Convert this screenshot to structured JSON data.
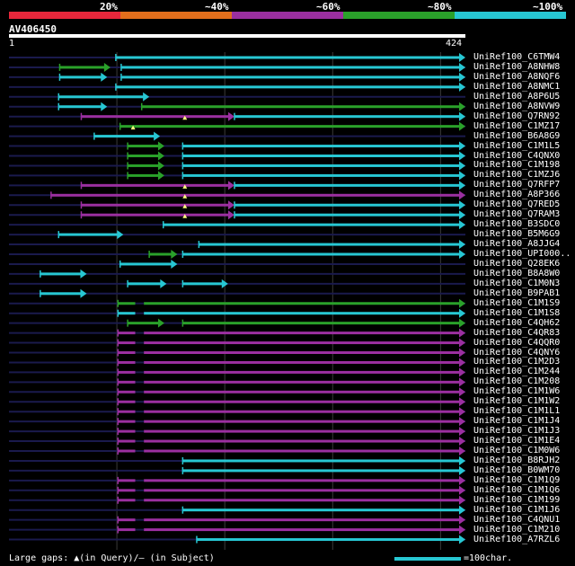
{
  "legend": {
    "bands": [
      {
        "label": "20%",
        "color": "#e8273b"
      },
      {
        "label": "~40%",
        "color": "#e36f1c"
      },
      {
        "label": "~60%",
        "color": "#9b2fa0"
      },
      {
        "label": "~80%",
        "color": "#2aa12a"
      },
      {
        "label": "~100%",
        "color": "#27c7d3"
      }
    ]
  },
  "query": {
    "name": "AV406450",
    "start": "1",
    "end": "424",
    "length": 424
  },
  "colors": {
    "query_line": "#1a1a4d",
    "grid": "#3a3a3a",
    "green": "#2aa12a",
    "cyan": "#27c7d3",
    "magenta": "#9b2fa0",
    "gap": "#ffff80"
  },
  "hits": [
    {
      "name": "UniRef100_C6TMW4",
      "segs": [
        [
          1,
          405,
          "line"
        ],
        [
          100,
          424,
          "cyan"
        ]
      ]
    },
    {
      "name": "UniRef100_A8NHW8",
      "segs": [
        [
          1,
          424,
          "line"
        ],
        [
          48,
          95,
          "green"
        ],
        [
          105,
          424,
          "cyan"
        ]
      ]
    },
    {
      "name": "UniRef100_A8NQF6",
      "segs": [
        [
          1,
          424,
          "line"
        ],
        [
          48,
          92,
          "cyan"
        ],
        [
          105,
          424,
          "cyan"
        ]
      ]
    },
    {
      "name": "UniRef100_A8NMC1",
      "segs": [
        [
          1,
          424,
          "line"
        ],
        [
          100,
          424,
          "cyan"
        ]
      ]
    },
    {
      "name": "UniRef100_A8P6U5",
      "segs": [
        [
          1,
          424,
          "line"
        ],
        [
          47,
          131,
          "cyan"
        ]
      ]
    },
    {
      "name": "UniRef100_A8NVW9",
      "segs": [
        [
          1,
          424,
          "line"
        ],
        [
          47,
          92,
          "cyan"
        ],
        [
          124,
          424,
          "green"
        ]
      ]
    },
    {
      "name": "UniRef100_Q7RN92",
      "segs": [
        [
          1,
          424,
          "line"
        ],
        [
          68,
          210,
          "magenta"
        ],
        [
          210,
          424,
          "cyan"
        ]
      ],
      "gaps": [
        164
      ]
    },
    {
      "name": "UniRef100_C1MZ17",
      "segs": [
        [
          1,
          424,
          "line"
        ],
        [
          104,
          424,
          "green"
        ]
      ],
      "gaps": [
        116
      ]
    },
    {
      "name": "UniRef100_B6A8G9",
      "segs": [
        [
          1,
          424,
          "line"
        ],
        [
          80,
          141,
          "cyan"
        ]
      ]
    },
    {
      "name": "UniRef100_C1M1L5",
      "segs": [
        [
          1,
          424,
          "line"
        ],
        [
          111,
          145,
          "green"
        ],
        [
          162,
          424,
          "cyan"
        ]
      ]
    },
    {
      "name": "UniRef100_C4QNX0",
      "segs": [
        [
          1,
          424,
          "line"
        ],
        [
          111,
          145,
          "green"
        ],
        [
          162,
          424,
          "cyan"
        ]
      ]
    },
    {
      "name": "UniRef100_C1M198",
      "segs": [
        [
          1,
          424,
          "line"
        ],
        [
          111,
          145,
          "green"
        ],
        [
          162,
          424,
          "cyan"
        ]
      ]
    },
    {
      "name": "UniRef100_C1MZJ6",
      "segs": [
        [
          1,
          424,
          "line"
        ],
        [
          111,
          145,
          "green"
        ],
        [
          162,
          424,
          "cyan"
        ]
      ]
    },
    {
      "name": "UniRef100_Q7RFP7",
      "segs": [
        [
          1,
          424,
          "line"
        ],
        [
          68,
          210,
          "magenta"
        ],
        [
          210,
          424,
          "cyan"
        ]
      ],
      "gaps": [
        164
      ]
    },
    {
      "name": "UniRef100_A8P366",
      "segs": [
        [
          1,
          424,
          "line"
        ],
        [
          40,
          424,
          "magenta"
        ]
      ],
      "gaps": [
        164
      ]
    },
    {
      "name": "UniRef100_Q7RED5",
      "segs": [
        [
          1,
          424,
          "line"
        ],
        [
          68,
          210,
          "magenta"
        ],
        [
          210,
          424,
          "cyan"
        ]
      ],
      "gaps": [
        164
      ]
    },
    {
      "name": "UniRef100_Q7RAM3",
      "segs": [
        [
          1,
          424,
          "line"
        ],
        [
          68,
          210,
          "magenta"
        ],
        [
          210,
          424,
          "cyan"
        ]
      ],
      "gaps": [
        164
      ]
    },
    {
      "name": "UniRef100_B3SDC0",
      "segs": [
        [
          1,
          424,
          "line"
        ],
        [
          144,
          424,
          "cyan"
        ]
      ]
    },
    {
      "name": "UniRef100_B5M6G9",
      "segs": [
        [
          1,
          424,
          "line"
        ],
        [
          47,
          107,
          "cyan"
        ]
      ]
    },
    {
      "name": "UniRef100_A8JJG4",
      "segs": [
        [
          1,
          424,
          "line"
        ],
        [
          177,
          424,
          "cyan"
        ]
      ]
    },
    {
      "name": "UniRef100_UPI000..",
      "segs": [
        [
          1,
          424,
          "line"
        ],
        [
          131,
          157,
          "green"
        ],
        [
          162,
          424,
          "cyan"
        ]
      ]
    },
    {
      "name": "UniRef100_Q28EK6",
      "segs": [
        [
          1,
          424,
          "line"
        ],
        [
          104,
          157,
          "cyan"
        ]
      ]
    },
    {
      "name": "UniRef100_B8A8W0",
      "segs": [
        [
          1,
          424,
          "line"
        ],
        [
          30,
          73,
          "cyan"
        ]
      ]
    },
    {
      "name": "UniRef100_C1M0N3",
      "segs": [
        [
          1,
          424,
          "line"
        ],
        [
          111,
          147,
          "cyan"
        ],
        [
          162,
          204,
          "cyan"
        ]
      ]
    },
    {
      "name": "UniRef100_B9PAB1",
      "segs": [
        [
          1,
          424,
          "line"
        ],
        [
          30,
          73,
          "cyan"
        ]
      ]
    },
    {
      "name": "UniRef100_C1M1S9",
      "segs": [
        [
          1,
          424,
          "line"
        ],
        [
          102,
          424,
          "green"
        ]
      ],
      "sgaps": [
        [
          118,
          126
        ]
      ]
    },
    {
      "name": "UniRef100_C1M1S8",
      "segs": [
        [
          1,
          424,
          "line"
        ],
        [
          102,
          424,
          "cyan"
        ]
      ],
      "sgaps": [
        [
          118,
          126
        ]
      ]
    },
    {
      "name": "UniRef100_C4QH62",
      "segs": [
        [
          1,
          424,
          "line"
        ],
        [
          111,
          145,
          "green"
        ],
        [
          162,
          424,
          "green"
        ]
      ]
    },
    {
      "name": "UniRef100_C4QR83",
      "segs": [
        [
          1,
          424,
          "line"
        ],
        [
          102,
          424,
          "magenta"
        ]
      ],
      "sgaps": [
        [
          118,
          126
        ]
      ]
    },
    {
      "name": "UniRef100_C4QQR0",
      "segs": [
        [
          1,
          424,
          "line"
        ],
        [
          102,
          424,
          "magenta"
        ]
      ],
      "sgaps": [
        [
          118,
          126
        ]
      ]
    },
    {
      "name": "UniRef100_C4QNY6",
      "segs": [
        [
          1,
          424,
          "line"
        ],
        [
          102,
          424,
          "magenta"
        ]
      ],
      "sgaps": [
        [
          118,
          126
        ]
      ]
    },
    {
      "name": "UniRef100_C1M2D3",
      "segs": [
        [
          1,
          424,
          "line"
        ],
        [
          102,
          424,
          "magenta"
        ]
      ],
      "sgaps": [
        [
          118,
          126
        ]
      ]
    },
    {
      "name": "UniRef100_C1M244",
      "segs": [
        [
          1,
          424,
          "line"
        ],
        [
          102,
          424,
          "magenta"
        ]
      ],
      "sgaps": [
        [
          118,
          126
        ]
      ]
    },
    {
      "name": "UniRef100_C1M208",
      "segs": [
        [
          1,
          424,
          "line"
        ],
        [
          102,
          424,
          "magenta"
        ]
      ],
      "sgaps": [
        [
          118,
          126
        ]
      ]
    },
    {
      "name": "UniRef100_C1M1W6",
      "segs": [
        [
          1,
          424,
          "line"
        ],
        [
          102,
          424,
          "magenta"
        ]
      ],
      "sgaps": [
        [
          118,
          126
        ]
      ]
    },
    {
      "name": "UniRef100_C1M1W2",
      "segs": [
        [
          1,
          424,
          "line"
        ],
        [
          102,
          424,
          "magenta"
        ]
      ],
      "sgaps": [
        [
          118,
          126
        ]
      ]
    },
    {
      "name": "UniRef100_C1M1L1",
      "segs": [
        [
          1,
          424,
          "line"
        ],
        [
          102,
          424,
          "magenta"
        ]
      ],
      "sgaps": [
        [
          118,
          126
        ]
      ]
    },
    {
      "name": "UniRef100_C1M1J4",
      "segs": [
        [
          1,
          424,
          "line"
        ],
        [
          102,
          424,
          "magenta"
        ]
      ],
      "sgaps": [
        [
          118,
          126
        ]
      ]
    },
    {
      "name": "UniRef100_C1M1J3",
      "segs": [
        [
          1,
          424,
          "line"
        ],
        [
          102,
          424,
          "magenta"
        ]
      ],
      "sgaps": [
        [
          118,
          126
        ]
      ]
    },
    {
      "name": "UniRef100_C1M1E4",
      "segs": [
        [
          1,
          424,
          "line"
        ],
        [
          102,
          424,
          "magenta"
        ]
      ],
      "sgaps": [
        [
          118,
          126
        ]
      ]
    },
    {
      "name": "UniRef100_C1M0W6",
      "segs": [
        [
          1,
          424,
          "line"
        ],
        [
          102,
          424,
          "magenta"
        ]
      ],
      "sgaps": [
        [
          118,
          126
        ]
      ]
    },
    {
      "name": "UniRef100_B8RJH2",
      "segs": [
        [
          1,
          424,
          "line"
        ],
        [
          162,
          424,
          "cyan"
        ]
      ]
    },
    {
      "name": "UniRef100_B0WM70",
      "segs": [
        [
          1,
          424,
          "line"
        ],
        [
          162,
          424,
          "cyan"
        ]
      ]
    },
    {
      "name": "UniRef100_C1M1Q9",
      "segs": [
        [
          1,
          424,
          "line"
        ],
        [
          102,
          424,
          "magenta"
        ]
      ],
      "sgaps": [
        [
          118,
          126
        ]
      ]
    },
    {
      "name": "UniRef100_C1M1Q6",
      "segs": [
        [
          1,
          424,
          "line"
        ],
        [
          102,
          424,
          "magenta"
        ]
      ],
      "sgaps": [
        [
          118,
          126
        ]
      ]
    },
    {
      "name": "UniRef100_C1M199",
      "segs": [
        [
          1,
          424,
          "line"
        ],
        [
          102,
          424,
          "magenta"
        ]
      ],
      "sgaps": [
        [
          118,
          126
        ]
      ]
    },
    {
      "name": "UniRef100_C1M1J6",
      "segs": [
        [
          1,
          424,
          "line"
        ],
        [
          162,
          424,
          "cyan"
        ]
      ]
    },
    {
      "name": "UniRef100_C4QNU1",
      "segs": [
        [
          1,
          424,
          "line"
        ],
        [
          102,
          424,
          "magenta"
        ]
      ],
      "sgaps": [
        [
          118,
          126
        ]
      ]
    },
    {
      "name": "UniRef100_C1M210",
      "segs": [
        [
          1,
          424,
          "line"
        ],
        [
          102,
          424,
          "magenta"
        ]
      ],
      "sgaps": [
        [
          118,
          126
        ]
      ]
    },
    {
      "name": "UniRef100_A7RZL6",
      "segs": [
        [
          1,
          424,
          "line"
        ],
        [
          175,
          424,
          "cyan"
        ]
      ]
    }
  ],
  "footer": {
    "large_gaps_prefix": "Large gaps: ",
    "query_marker": "▲",
    "query_text": "(in Query)/",
    "subject_marker": "–",
    "subject_text": " (in Subject)",
    "scale_text": "=100char."
  }
}
